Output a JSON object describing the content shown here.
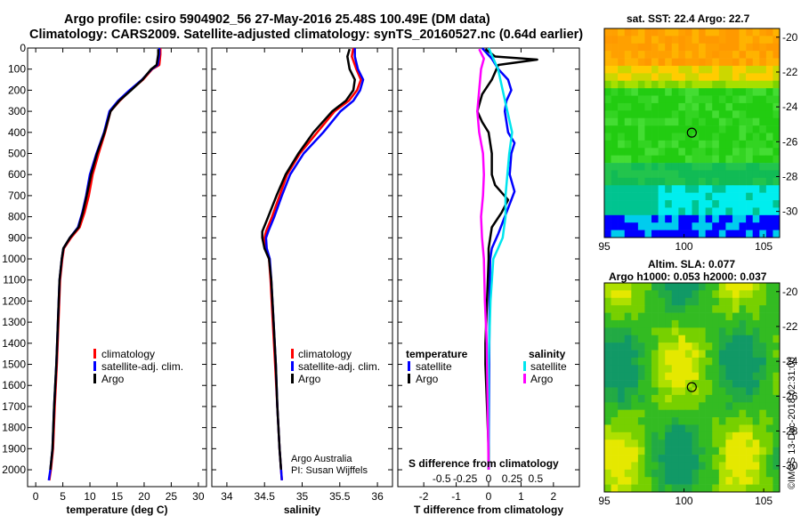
{
  "title": {
    "line1": "Argo profile: csiro 5904902_56 27-May-2016 25.48S 100.49E (DM data)",
    "line2": "Climatology: CARS2009. Satellite-adjusted climatology: synTS_20160527.nc (0.64d earlier)"
  },
  "colors": {
    "climatology": "#ff0000",
    "satellite": "#0000ff",
    "argo": "#000000",
    "sat_s": "#00e5ee",
    "argo_s": "#ff00ff"
  },
  "chart_data": [
    {
      "id": "temperature",
      "type": "line",
      "xlabel": "temperature (deg C)",
      "xlim": [
        -1.5,
        31.5
      ],
      "xticks": [
        "0",
        "5",
        "10",
        "15",
        "20",
        "25",
        "30"
      ],
      "ylim": [
        0,
        2080
      ],
      "yticks": [
        "0",
        "100",
        "200",
        "300",
        "400",
        "500",
        "600",
        "700",
        "800",
        "900",
        "1000",
        "1100",
        "1200",
        "1300",
        "1400",
        "1500",
        "1600",
        "1700",
        "1800",
        "1900",
        "2000"
      ],
      "legend": [
        "climatology",
        "satellite-adj. clim.",
        "Argo"
      ],
      "series": [
        {
          "name": "climatology",
          "x": [
            23.0,
            23.0,
            22.8,
            21.5,
            19.8,
            17.5,
            15.5,
            13.8,
            12.8,
            11.6,
            10.5,
            9.8,
            9.0,
            8.1,
            6.5,
            5.2,
            4.9,
            4.5,
            4.2,
            3.9,
            3.5,
            3.2,
            2.8,
            2.5
          ],
          "y": [
            0,
            30,
            80,
            100,
            150,
            200,
            250,
            300,
            400,
            500,
            600,
            700,
            780,
            850,
            900,
            950,
            1000,
            1100,
            1300,
            1500,
            1700,
            1900,
            2000,
            2050
          ]
        },
        {
          "name": "satellite-adj. clim.",
          "x": [
            22.8,
            22.8,
            22.5,
            21.4,
            19.6,
            17.3,
            15.2,
            13.6,
            12.6,
            11.2,
            10.0,
            9.3,
            8.6,
            7.8,
            6.3,
            5.1,
            4.8,
            4.4,
            4.1,
            3.8,
            3.4,
            3.1,
            2.7,
            2.4
          ],
          "y": [
            0,
            30,
            80,
            100,
            150,
            200,
            250,
            300,
            400,
            500,
            600,
            700,
            780,
            850,
            900,
            950,
            1000,
            1100,
            1300,
            1500,
            1700,
            1900,
            2000,
            2050
          ]
        },
        {
          "name": "Argo",
          "x": [
            22.6,
            22.6,
            22.3,
            21.3,
            19.7,
            17.6,
            15.4,
            13.8,
            12.7,
            11.3,
            10.2,
            9.4,
            8.7,
            7.9,
            6.3,
            5.1,
            4.8,
            4.4,
            4.1,
            3.8,
            3.4,
            3.1,
            2.7
          ],
          "y": [
            5,
            30,
            80,
            100,
            150,
            200,
            250,
            300,
            400,
            500,
            600,
            700,
            780,
            850,
            900,
            950,
            1000,
            1100,
            1300,
            1500,
            1700,
            1900,
            2000
          ]
        }
      ]
    },
    {
      "id": "salinity",
      "type": "line",
      "xlabel": "salinity",
      "xlim": [
        33.8,
        36.2
      ],
      "xticks": [
        "34",
        "34.5",
        "35",
        "35.5",
        "36"
      ],
      "ylim": [
        0,
        2080
      ],
      "legend": [
        "climatology",
        "satellite-adj. clim.",
        "Argo"
      ],
      "annotations": [
        "Argo Australia",
        "PI: Susan Wijffels"
      ],
      "series": [
        {
          "name": "climatology",
          "x": [
            35.68,
            35.66,
            35.72,
            35.78,
            35.73,
            35.62,
            35.43,
            35.2,
            34.97,
            34.8,
            34.7,
            34.6,
            34.52,
            34.5,
            34.52,
            34.56,
            34.58,
            34.61,
            34.64,
            34.67,
            34.7,
            34.72,
            34.73
          ],
          "y": [
            0,
            40,
            100,
            150,
            200,
            250,
            300,
            400,
            500,
            600,
            700,
            800,
            870,
            900,
            950,
            1000,
            1100,
            1300,
            1500,
            1700,
            1900,
            2000,
            2050
          ]
        },
        {
          "name": "satellite-adj. clim.",
          "x": [
            35.7,
            35.7,
            35.74,
            35.81,
            35.77,
            35.68,
            35.51,
            35.28,
            35.02,
            34.84,
            34.73,
            34.63,
            34.55,
            34.52,
            34.53,
            34.57,
            34.59,
            34.62,
            34.65,
            34.67,
            34.7,
            34.72,
            34.73
          ],
          "y": [
            0,
            40,
            100,
            150,
            200,
            250,
            300,
            400,
            500,
            600,
            700,
            800,
            870,
            900,
            950,
            1000,
            1100,
            1300,
            1500,
            1700,
            1900,
            2000,
            2050
          ]
        },
        {
          "name": "Argo",
          "x": [
            35.63,
            35.6,
            35.63,
            35.7,
            35.68,
            35.58,
            35.4,
            35.15,
            34.95,
            34.78,
            34.66,
            34.55,
            34.47,
            34.47,
            34.5,
            34.56,
            34.59,
            34.62,
            34.65,
            34.67,
            34.7,
            34.72
          ],
          "y": [
            5,
            40,
            100,
            150,
            200,
            250,
            300,
            400,
            500,
            600,
            700,
            800,
            870,
            900,
            950,
            1000,
            1100,
            1300,
            1500,
            1700,
            1900,
            2000
          ]
        }
      ]
    },
    {
      "id": "differences",
      "type": "line",
      "xlabel": "T difference from climatology",
      "x2label": "S difference from climatology",
      "xlim": [
        -2.8,
        2.8
      ],
      "xticks": [
        "-2",
        "-1",
        "0",
        "1",
        "2"
      ],
      "x2ticks": [
        "-0.5",
        "-0.25",
        "0",
        "0.25",
        "0.5"
      ],
      "ylim": [
        0,
        2080
      ],
      "legend_titles": [
        "temperature",
        "salinity"
      ],
      "legend": [
        "satellite",
        "Argo",
        "satellite",
        "Argo"
      ],
      "series": [
        {
          "name": "temperature satellite",
          "x": [
            -0.2,
            0.1,
            0.3,
            0.6,
            0.7,
            0.55,
            0.5,
            0.6,
            0.8,
            0.7,
            0.65,
            0.8,
            0.7,
            0.5,
            0.3,
            0.1,
            0.05,
            0.03,
            0.02,
            0.0
          ],
          "y": [
            0,
            50,
            100,
            150,
            200,
            250,
            300,
            400,
            450,
            500,
            600,
            680,
            720,
            800,
            880,
            950,
            1000,
            1200,
            1500,
            2000
          ]
        },
        {
          "name": "temperature Argo",
          "x": [
            -0.1,
            0.2,
            1.5,
            0.3,
            0.1,
            -0.2,
            -0.35,
            -0.2,
            0.0,
            0.1,
            0.1,
            0.2,
            0.6,
            0.4,
            0.1,
            0.0,
            0.0,
            -0.05,
            -0.1,
            -0.1,
            -0.05,
            0.0,
            0.0
          ],
          "y": [
            5,
            40,
            55,
            80,
            150,
            220,
            300,
            350,
            400,
            500,
            600,
            650,
            720,
            780,
            850,
            950,
            1000,
            1200,
            1400,
            1500,
            1700,
            1900,
            2000
          ]
        },
        {
          "name": "salinity satellite",
          "x": [
            0.0,
            0.05,
            0.1,
            0.15,
            0.2,
            0.25,
            0.22,
            0.2,
            0.18,
            0.18,
            0.15,
            0.1,
            0.05,
            0.02,
            0.0,
            0.0,
            0.0
          ],
          "y": [
            0,
            50,
            100,
            200,
            300,
            400,
            500,
            600,
            700,
            800,
            900,
            950,
            1000,
            1200,
            1500,
            1800,
            2000
          ]
        },
        {
          "name": "salinity Argo",
          "x": [
            -0.1,
            -0.05,
            -0.08,
            -0.1,
            -0.12,
            -0.1,
            -0.06,
            -0.05,
            -0.06,
            -0.08,
            -0.07,
            -0.05,
            -0.04,
            -0.02,
            0.0
          ],
          "y": [
            5,
            50,
            100,
            200,
            300,
            400,
            500,
            600,
            700,
            800,
            900,
            1000,
            1200,
            1400,
            2000
          ]
        }
      ]
    },
    {
      "id": "sst_map",
      "type": "heatmap",
      "title": "sat. SST: 22.4 Argo: 22.7",
      "xticks": [
        "95",
        "100",
        "105"
      ],
      "yticks": [
        "-20",
        "-22",
        "-24",
        "-26",
        "-28",
        "-30"
      ],
      "xlim": [
        95,
        106
      ],
      "ylim": [
        -31.5,
        -19.5
      ],
      "marker": {
        "lon": 100.49,
        "lat": -25.48
      }
    },
    {
      "id": "sla_map",
      "type": "heatmap",
      "title": "Altim. SLA: 0.077",
      "subtitle": "Argo h1000: 0.053 h2000: 0.037",
      "xticks": [
        "95",
        "100",
        "105"
      ],
      "yticks": [
        "-20",
        "-22",
        "-24",
        "-26",
        "-28",
        "-30"
      ],
      "xlim": [
        95,
        106
      ],
      "ylim": [
        -31.5,
        -19.5
      ],
      "marker": {
        "lon": 100.49,
        "lat": -25.48
      }
    }
  ],
  "credit": "©IMOS 13-Dec-2018 02:31:00"
}
